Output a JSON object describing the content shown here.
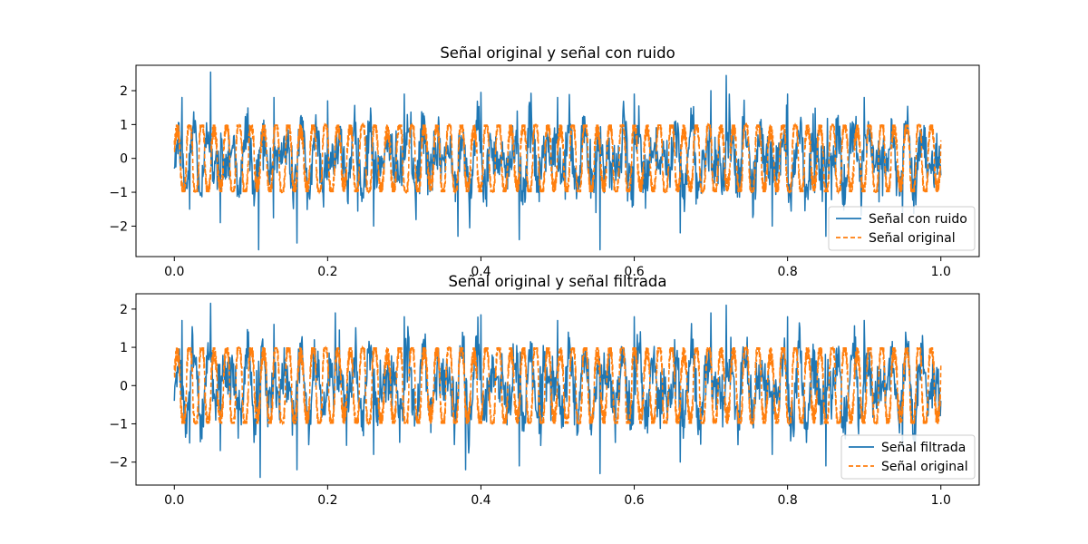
{
  "chart_data": [
    {
      "type": "line",
      "title": "Señal original y señal con ruido",
      "xlabel": "",
      "ylabel": "",
      "xlim": [
        -0.05,
        1.05
      ],
      "ylim": [
        -2.9,
        2.75
      ],
      "xticks": [
        0.0,
        0.2,
        0.4,
        0.6,
        0.8,
        1.0
      ],
      "xtick_labels": [
        "0.0",
        "0.2",
        "0.4",
        "0.6",
        "0.8",
        "1.0"
      ],
      "yticks": [
        2,
        1,
        0,
        -1,
        -2
      ],
      "ytick_labels": [
        "2",
        "1",
        "0",
        "−1",
        "−2"
      ],
      "grid": false,
      "legend_position": "lower-right",
      "series": [
        {
          "name": "Señal con ruido",
          "color": "#1f77b4",
          "style": "solid",
          "description_values": {
            "x_start": 0.0,
            "x_end": 1.0,
            "approx_min": -2.7,
            "approx_max": 2.55
          },
          "peaks": [
            [
              0.0,
              -0.3
            ],
            [
              0.01,
              1.8
            ],
            [
              0.02,
              -1.5
            ],
            [
              0.047,
              2.55
            ],
            [
              0.06,
              -1.9
            ],
            [
              0.11,
              -2.7
            ],
            [
              0.13,
              1.8
            ],
            [
              0.16,
              -2.5
            ],
            [
              0.2,
              1.7
            ],
            [
              0.26,
              -2.0
            ],
            [
              0.3,
              1.9
            ],
            [
              0.37,
              -2.3
            ],
            [
              0.4,
              1.95
            ],
            [
              0.45,
              -2.4
            ],
            [
              0.5,
              1.8
            ],
            [
              0.55,
              -1.6
            ],
            [
              0.555,
              -2.7
            ],
            [
              0.6,
              1.9
            ],
            [
              0.66,
              -2.2
            ],
            [
              0.7,
              2.0
            ],
            [
              0.72,
              2.45
            ],
            [
              0.78,
              -2.0
            ],
            [
              0.8,
              1.9
            ],
            [
              0.85,
              -2.3
            ],
            [
              0.9,
              1.8
            ],
            [
              0.95,
              -1.7
            ],
            [
              1.0,
              -0.5
            ]
          ]
        },
        {
          "name": "Señal original",
          "color": "#ff7f0e",
          "style": "dashed",
          "amplitude": 1,
          "x_start": 0.0,
          "x_end": 1.0
        }
      ]
    },
    {
      "type": "line",
      "title": "Señal original y señal filtrada",
      "xlabel": "",
      "ylabel": "",
      "xlim": [
        -0.05,
        1.05
      ],
      "ylim": [
        -2.6,
        2.4
      ],
      "xticks": [
        0.0,
        0.2,
        0.4,
        0.6,
        0.8,
        1.0
      ],
      "xtick_labels": [
        "0.0",
        "0.2",
        "0.4",
        "0.6",
        "0.8",
        "1.0"
      ],
      "yticks": [
        2,
        1,
        0,
        -1,
        -2
      ],
      "ytick_labels": [
        "2",
        "1",
        "0",
        "−1",
        "−2"
      ],
      "grid": false,
      "legend_position": "lower-right",
      "series": [
        {
          "name": "Señal filtrada",
          "color": "#1f77b4",
          "style": "solid",
          "description_values": {
            "x_start": 0.0,
            "x_end": 1.0,
            "approx_min": -2.4,
            "approx_max": 2.15
          },
          "peaks": [
            [
              0.0,
              -0.4
            ],
            [
              0.01,
              1.7
            ],
            [
              0.02,
              -1.5
            ],
            [
              0.047,
              2.15
            ],
            [
              0.06,
              -1.7
            ],
            [
              0.112,
              -2.4
            ],
            [
              0.13,
              1.6
            ],
            [
              0.16,
              -2.2
            ],
            [
              0.21,
              1.9
            ],
            [
              0.26,
              -1.8
            ],
            [
              0.3,
              1.8
            ],
            [
              0.38,
              -2.2
            ],
            [
              0.4,
              1.85
            ],
            [
              0.45,
              -2.1
            ],
            [
              0.5,
              1.7
            ],
            [
              0.555,
              -2.3
            ],
            [
              0.6,
              1.8
            ],
            [
              0.66,
              -2.0
            ],
            [
              0.7,
              1.9
            ],
            [
              0.72,
              2.1
            ],
            [
              0.78,
              -1.8
            ],
            [
              0.8,
              1.8
            ],
            [
              0.85,
              -2.1
            ],
            [
              0.9,
              1.7
            ],
            [
              0.95,
              -1.6
            ],
            [
              1.0,
              -0.4
            ]
          ]
        },
        {
          "name": "Señal original",
          "color": "#ff7f0e",
          "style": "dashed",
          "amplitude": 1,
          "x_start": 0.0,
          "x_end": 1.0
        }
      ]
    }
  ]
}
